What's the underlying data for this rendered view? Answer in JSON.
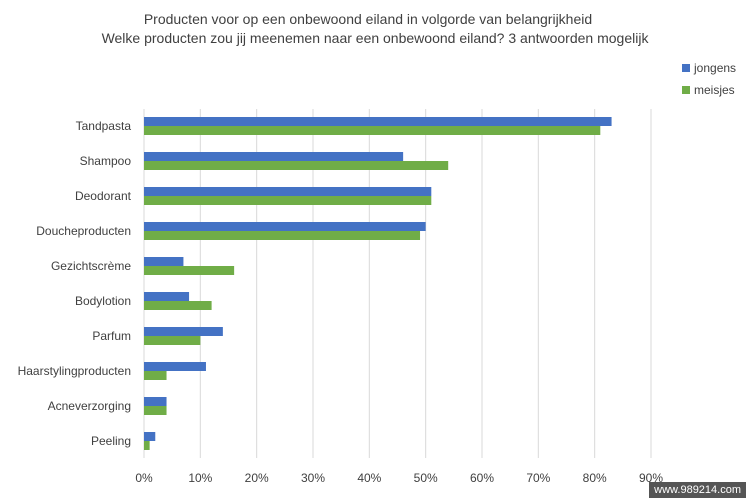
{
  "chart_data": {
    "type": "bar",
    "orientation": "horizontal",
    "title": "Producten voor op een onbewoond eiland in volgorde van belangrijkheid",
    "subtitle": "Welke producten zou jij meenemen naar een onbewoond eiland? 3 antwoorden mogelijk",
    "categories": [
      "Tandpasta",
      "Shampoo",
      "Deodorant",
      "Doucheproducten",
      "Gezichtscrème",
      "Bodylotion",
      "Parfum",
      "Haarstylingproducten",
      "Acneverzorging",
      "Peeling"
    ],
    "series": [
      {
        "name": "jongens",
        "color": "#4472C4",
        "values": [
          83,
          46,
          51,
          50,
          7,
          8,
          14,
          11,
          4,
          2
        ]
      },
      {
        "name": "meisjes",
        "color": "#70AD47",
        "values": [
          81,
          54,
          51,
          49,
          16,
          12,
          10,
          4,
          4,
          1
        ]
      }
    ],
    "xlim": [
      0,
      90
    ],
    "xticks": [
      "0%",
      "10%",
      "20%",
      "30%",
      "40%",
      "50%",
      "60%",
      "70%",
      "80%",
      "90%"
    ],
    "grid": true,
    "legend": "top-right"
  },
  "watermark": "www.989214.com"
}
